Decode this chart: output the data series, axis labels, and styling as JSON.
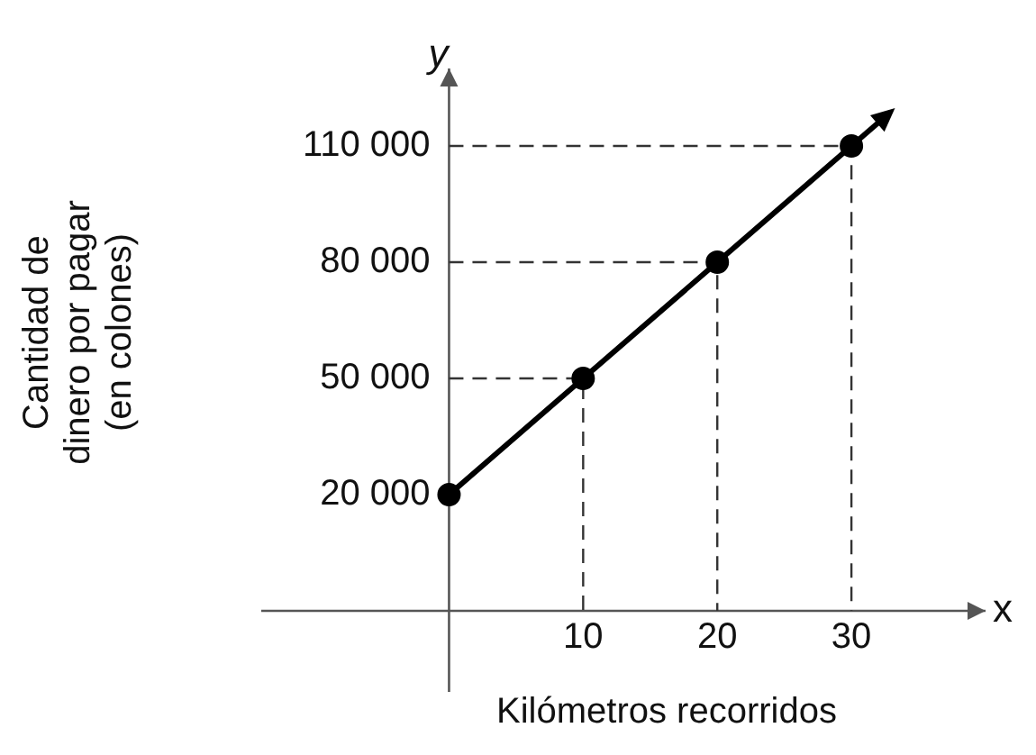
{
  "chart_data": {
    "type": "line",
    "xlabel": "Kilómetros recorridos",
    "ylabel": "Cantidad de dinero por pagar (en colones)",
    "annotations": [
      "x",
      "y"
    ],
    "x": [
      0,
      10,
      20,
      30
    ],
    "series": [
      {
        "color": "#000000",
        "values": [
          20000,
          50000,
          80000,
          110000
        ]
      },
      {
        "type": "line",
        "color": "#333333",
        "marker": "none",
        "line_style": "dashed",
        "x": [
          0,
          10,
          10
        ],
        "values": [
          50000,
          50000,
          -10000
        ]
      },
      {
        "type": "line",
        "color": "#333333",
        "marker": "none",
        "line_style": "dashed",
        "x": [
          0,
          20,
          20
        ],
        "values": [
          80000,
          80000,
          -10000
        ]
      },
      {
        "type": "line",
        "color": "#333333",
        "marker": "none",
        "line_style": "dashed",
        "x": [
          0,
          30,
          30
        ],
        "values": [
          110000,
          110000,
          -10000
        ]
      }
    ],
    "xlim": [
      -14,
      40
    ],
    "ylim": [
      -10000,
      130000
    ],
    "xticks": [
      10,
      20,
      30
    ],
    "yticks": [
      {
        "value": 20000,
        "label": "20 000"
      },
      {
        "value": 50000,
        "label": "50 000"
      },
      {
        "value": 80000,
        "label": "80 000"
      },
      {
        "value": 110000,
        "label": "110 000"
      }
    ],
    "grid": false,
    "legend": false,
    "marker": "circle",
    "line_style": "solid"
  }
}
